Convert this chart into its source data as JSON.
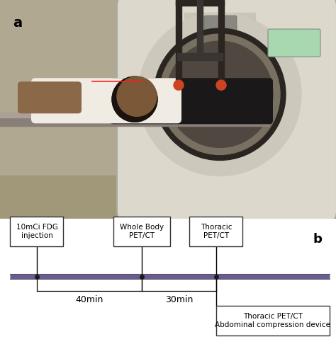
{
  "label_a": "a",
  "label_b": "b",
  "timeline_color": "#6b5b95",
  "dot_color": "#1a1a1a",
  "dot_size": 5,
  "box_labels": [
    "10mCi FDG\ninjection",
    "Whole Body\nPET/CT",
    "Thoracic\nPET/CT"
  ],
  "bottom_box_label": "Thoracic PET/CT\nAbdominal compression device",
  "time_labels": [
    "40min",
    "30min"
  ],
  "box_facecolor": "#ffffff",
  "box_edgecolor": "#333333",
  "text_fontsize": 7.5,
  "label_fontsize": 13,
  "time_fontsize": 9,
  "photo_bg_left": "#b8a888",
  "photo_bg_right": "#c8bca8",
  "ct_body_color": "#e0d8c8",
  "ct_ring_dark": "#2a2520",
  "ct_bore_color": "#787060",
  "patient_skin": "#5a3a20",
  "patient_shirt": "#f0ece4",
  "patient_pants": "#1a1818",
  "device_color": "#2a2520",
  "room_bg": "#b0a890",
  "wall_color": "#c8c0a8"
}
